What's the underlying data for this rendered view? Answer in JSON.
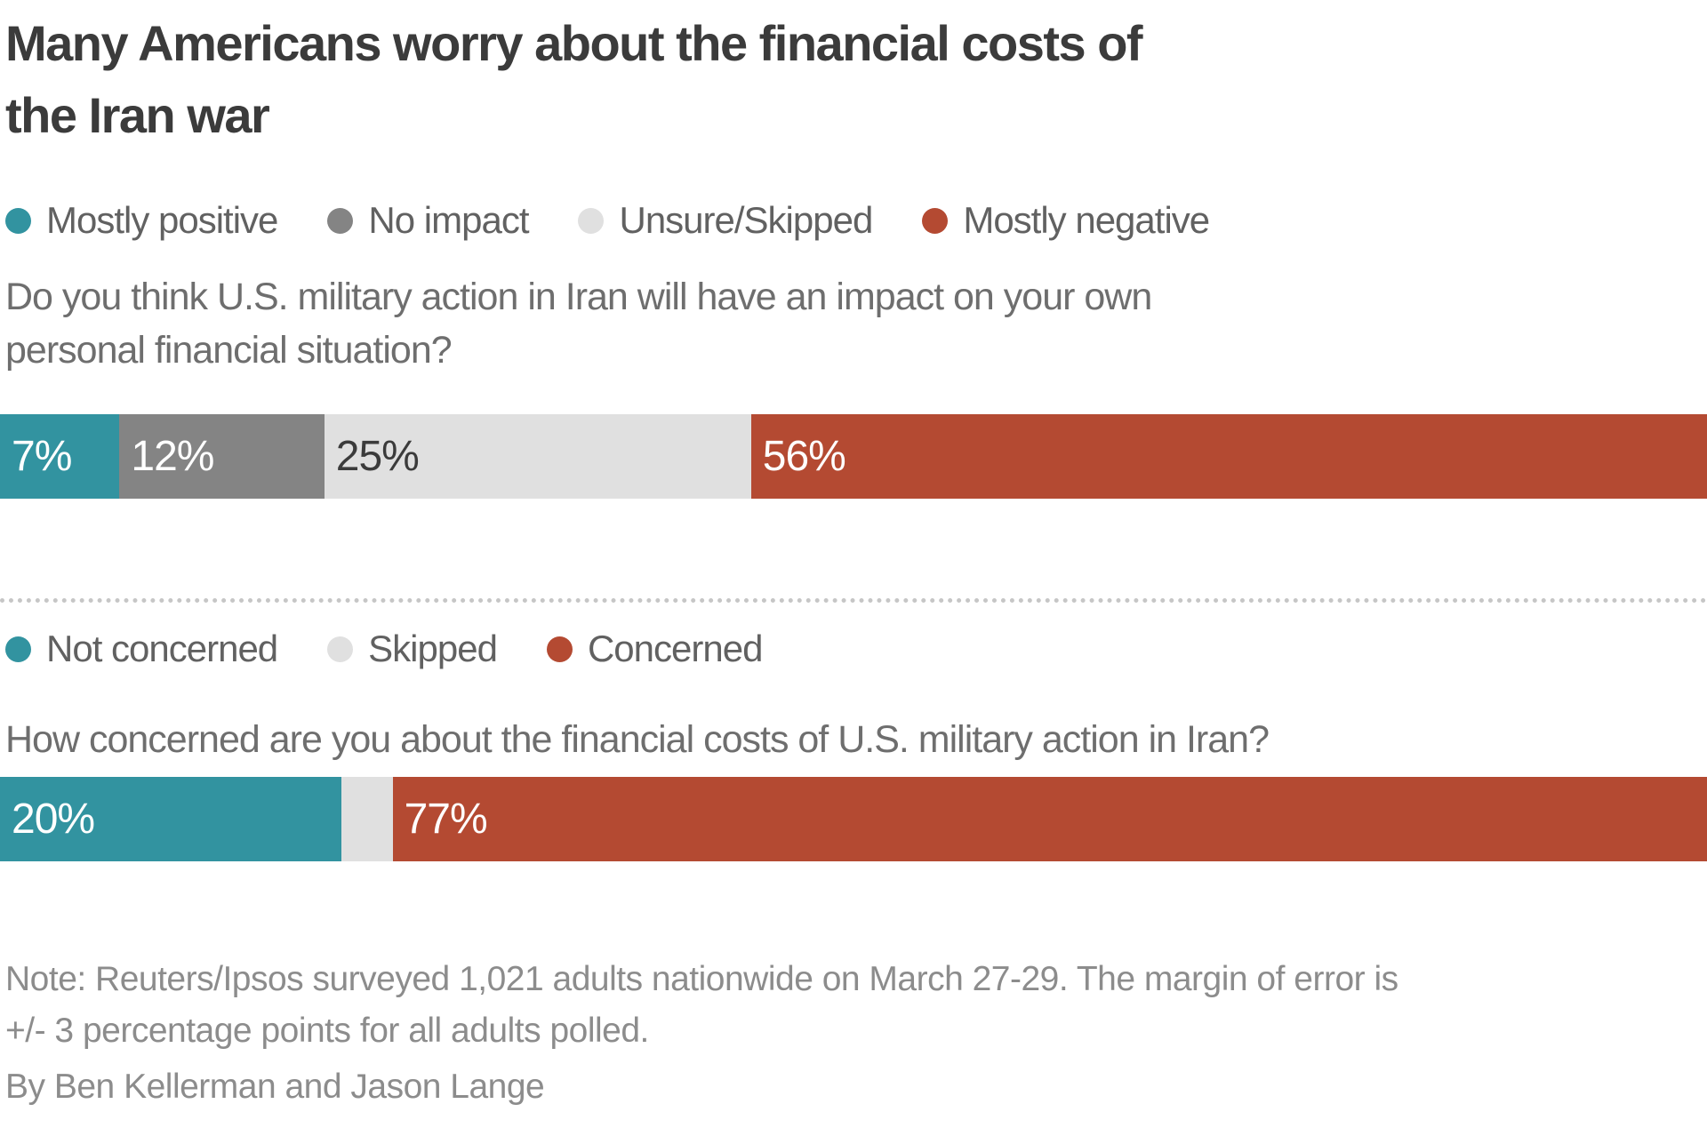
{
  "header": {
    "title_lines": [
      "Many Americans worry about the financial costs of",
      "the Iran war"
    ]
  },
  "colors": {
    "teal": "#3293a0",
    "gray": "#848484",
    "light_gray": "#e0e0e0",
    "red": "#b44a32",
    "title_text": "#3b3b3b",
    "body_text": "#6e6e6e",
    "footer_text": "#8c8c8c"
  },
  "chart_data": [
    {
      "type": "bar",
      "subtype": "stacked-horizontal-100pct",
      "question_lines": [
        "Do you think U.S. military action in Iran will have an impact on your own",
        "personal financial situation?"
      ],
      "legend": [
        {
          "label": "Mostly positive",
          "color": "#3293a0"
        },
        {
          "label": "No impact",
          "color": "#848484"
        },
        {
          "label": "Unsure/Skipped",
          "color": "#e0e0e0"
        },
        {
          "label": "Mostly negative",
          "color": "#b44a32"
        }
      ],
      "xlim": [
        0,
        100
      ],
      "segments": [
        {
          "label": "Mostly positive",
          "value": 7,
          "display": "7%",
          "color": "#3293a0",
          "text_color": "#ffffff"
        },
        {
          "label": "No impact",
          "value": 12,
          "display": "12%",
          "color": "#848484",
          "text_color": "#ffffff"
        },
        {
          "label": "Unsure/Skipped",
          "value": 25,
          "display": "25%",
          "color": "#e0e0e0",
          "text_color": "#3b3b3b"
        },
        {
          "label": "Mostly negative",
          "value": 56,
          "display": "56%",
          "color": "#b44a32",
          "text_color": "#ffffff"
        }
      ]
    },
    {
      "type": "bar",
      "subtype": "stacked-horizontal-100pct",
      "question_lines": [
        "How concerned are you about the financial costs of U.S. military action in Iran?"
      ],
      "legend": [
        {
          "label": "Not concerned",
          "color": "#3293a0"
        },
        {
          "label": "Skipped",
          "color": "#e0e0e0"
        },
        {
          "label": "Concerned",
          "color": "#b44a32"
        }
      ],
      "xlim": [
        0,
        100
      ],
      "segments": [
        {
          "label": "Not concerned",
          "value": 20,
          "display": "20%",
          "color": "#3293a0",
          "text_color": "#ffffff"
        },
        {
          "label": "Skipped",
          "value": 3,
          "display": "",
          "color": "#e0e0e0",
          "text_color": "#3b3b3b"
        },
        {
          "label": "Concerned",
          "value": 77,
          "display": "77%",
          "color": "#b44a32",
          "text_color": "#ffffff"
        }
      ]
    }
  ],
  "footer": {
    "note_lines": [
      "Note: Reuters/Ipsos surveyed 1,021 adults nationwide on March 27-29. The margin of error is",
      "+/- 3 percentage points for all adults polled."
    ],
    "byline": "By Ben Kellerman and Jason Lange"
  }
}
